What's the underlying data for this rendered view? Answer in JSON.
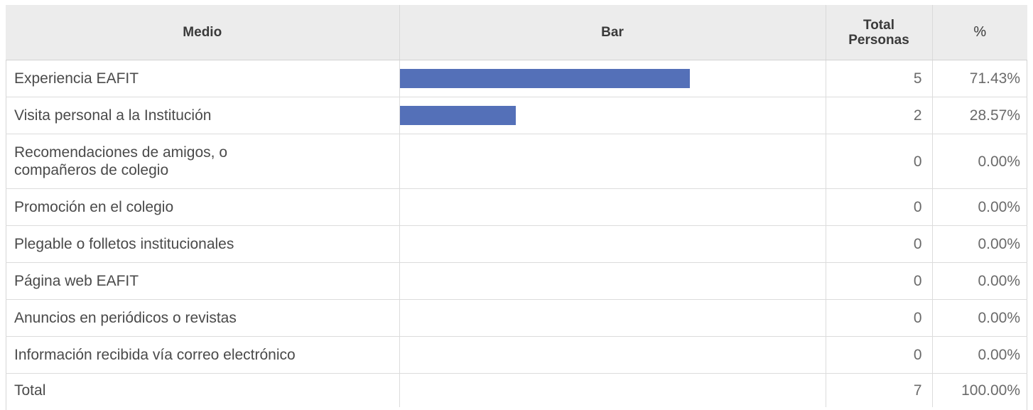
{
  "headers": {
    "medio": "Medio",
    "bar": "Bar",
    "total_line1": "Total",
    "total_line2": "Personas",
    "pct": "%"
  },
  "chart_data": {
    "type": "table",
    "bar_color": "#5470b8",
    "bar_max": 7,
    "rows": [
      {
        "medio": "Experiencia EAFIT",
        "count": "5",
        "pct": "71.43%",
        "value": 5
      },
      {
        "medio": "Visita personal a la Institución",
        "count": "2",
        "pct": "28.57%",
        "value": 2
      },
      {
        "medio_line1": "Recomendaciones de amigos, o",
        "medio_line2": "compañeros de colegio",
        "count": "0",
        "pct": "0.00%",
        "value": 0
      },
      {
        "medio": "Promoción en el colegio",
        "count": "0",
        "pct": "0.00%",
        "value": 0
      },
      {
        "medio": "Plegable o folletos institucionales",
        "count": "0",
        "pct": "0.00%",
        "value": 0
      },
      {
        "medio": "Página web EAFIT",
        "count": "0",
        "pct": "0.00%",
        "value": 0
      },
      {
        "medio": "Anuncios en periódicos o revistas",
        "count": "0",
        "pct": "0.00%",
        "value": 0
      },
      {
        "medio": "Información recibida vía correo electrónico",
        "count": "0",
        "pct": "0.00%",
        "value": 0
      }
    ],
    "total": {
      "medio": "Total",
      "count": "7",
      "pct": "100.00%"
    }
  }
}
